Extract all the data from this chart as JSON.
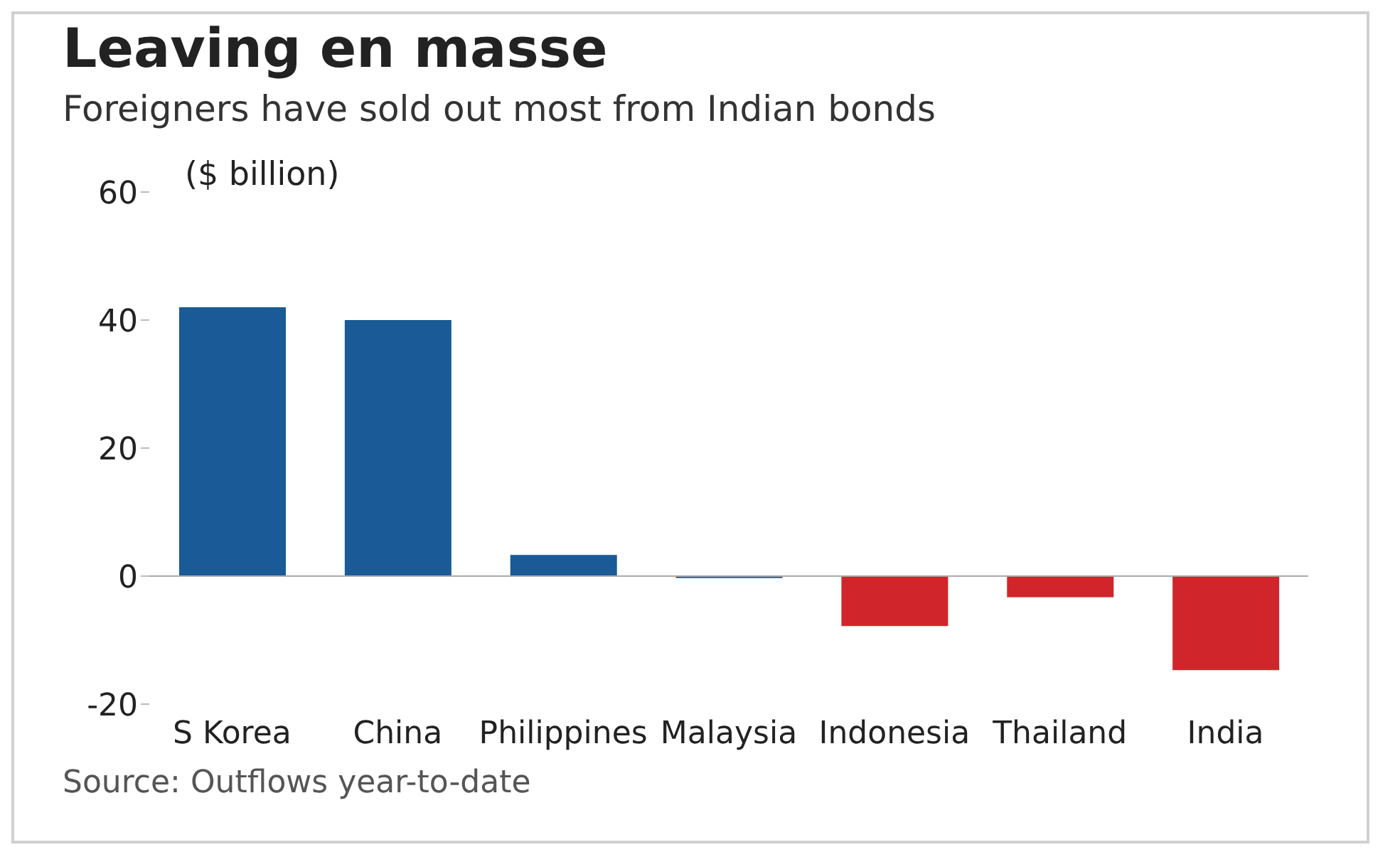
{
  "chart_data": {
    "type": "bar",
    "title": "Leaving en masse",
    "subtitle": "Foreigners have sold out most from Indian bonds",
    "ylabel": "($ billion)",
    "categories": [
      "S Korea",
      "China",
      "Philippines",
      "Malaysia",
      "Indonesia",
      "Thailand",
      "India"
    ],
    "values": [
      42,
      40,
      3.3,
      -0.3,
      -7.8,
      -3.3,
      -14.7
    ],
    "colors": [
      "#1a5a96",
      "#1a5a96",
      "#1a5a96",
      "#1a5a96",
      "#d0262b",
      "#d0262b",
      "#d0262b"
    ],
    "ylim": [
      -20,
      60
    ],
    "yticks": [
      -20,
      0,
      20,
      40,
      60
    ],
    "annotations": [
      "Source: Outflows year-to-date"
    ]
  }
}
